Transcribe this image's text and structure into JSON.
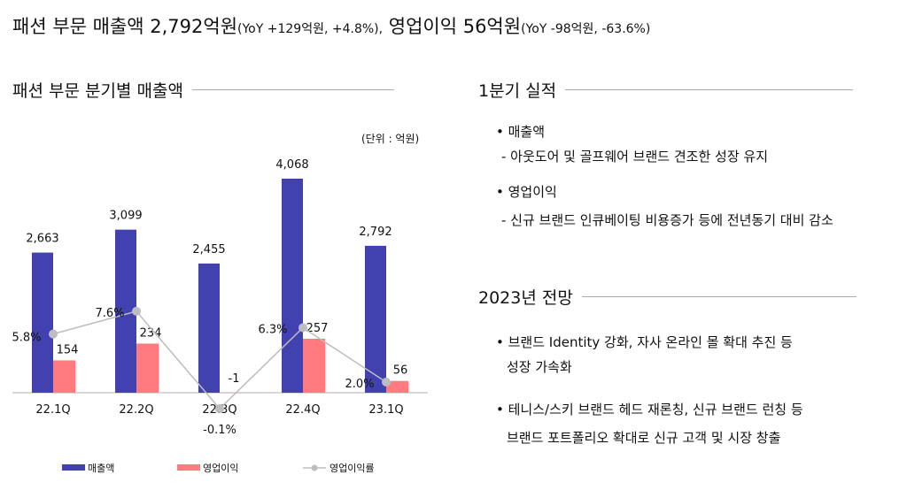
{
  "headline": {
    "part1": "패션 부문 매출액 2,792억원",
    "part1_small": "(YoY +129억원, +4.8%),",
    "part2": " 영업이익 56억원",
    "part2_small": "(YoY -98억원, -63.6%)"
  },
  "left_title": "패션 부문 분기별 매출액",
  "unit": "(단위 : 억원)",
  "right": {
    "q1_title": "1분기 실적",
    "q1_items": [
      {
        "head": "• 매출액",
        "detail": "- 아웃도어 및 골프웨어 브랜드 견조한 성장 유지"
      },
      {
        "head": "• 영업이익",
        "detail": "- 신규 브랜드 인큐베이팅 비용증가 등에 전년동기 대비 감소"
      }
    ],
    "outlook_title": "2023년 전망",
    "outlook_items": [
      {
        "line1": "• 브랜드 Identity 강화, 자사 온라인 몰 확대 추진 등",
        "line2": "성장 가속화"
      },
      {
        "line1": "• 테니스/스키 브랜드 헤드 재론칭, 신규 브랜드 런칭 등",
        "line2": "브랜드 포트폴리오 확대로 신규 고객 및 시장 창출"
      }
    ]
  },
  "chart_data": {
    "type": "bar",
    "categories": [
      "22.1Q",
      "22.2Q",
      "22.3Q",
      "22.4Q",
      "23.1Q"
    ],
    "series": [
      {
        "name": "매출액",
        "type": "bar",
        "color": "#4141B0",
        "values": [
          2663,
          3099,
          2455,
          4068,
          2792
        ],
        "labels": [
          "2,663",
          "3,099",
          "2,455",
          "4,068",
          "2,792"
        ]
      },
      {
        "name": "영업이익",
        "type": "bar",
        "color": "#FF7B80",
        "values": [
          154,
          234,
          -1,
          257,
          56
        ],
        "labels": [
          "154",
          "234",
          "-1",
          "257",
          "56"
        ]
      },
      {
        "name": "영업이익률",
        "type": "line",
        "color": "#BDBDBD",
        "values": [
          5.8,
          7.6,
          -0.1,
          6.3,
          2.0
        ],
        "labels": [
          "5.8%",
          "7.6%",
          "-0.1%",
          "6.3%",
          "2.0%"
        ]
      }
    ],
    "unit": "(단위 : 억원)",
    "legend": "bottom",
    "grid": false
  }
}
